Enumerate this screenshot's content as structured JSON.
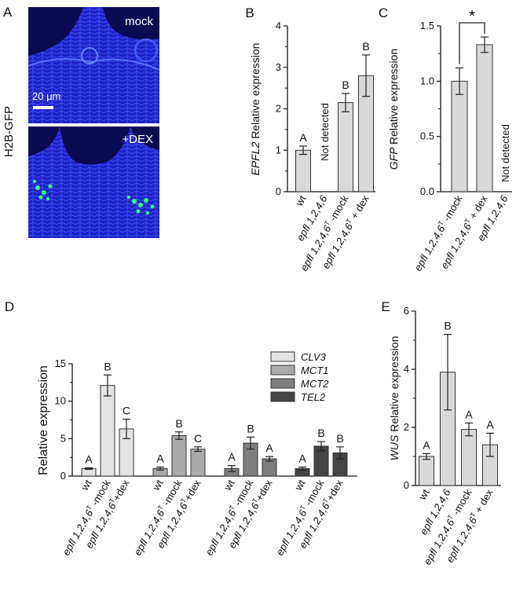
{
  "panels": {
    "a": {
      "letter": "A",
      "side_label": "H2B-GFP",
      "top_label": "mock",
      "bottom_label": "+DEX",
      "scale_bar": "20 μm"
    }
  },
  "colors": {
    "micro_bg": "#1414b4",
    "gfp": "#33ff77",
    "bar_light": "#d9d9d9",
    "clv3": "#e3e3e3",
    "mct1": "#aaaaaa",
    "mct2": "#7f7f7f",
    "tel2": "#454545"
  },
  "chart_data": [
    {
      "panel": "B",
      "type": "bar",
      "ylabel_italic": "EPFL2",
      "ylabel": "Relative expression",
      "ylim": [
        0,
        4
      ],
      "yticks": [
        "0",
        "1",
        "2",
        "3",
        "4"
      ],
      "categories": [
        {
          "main": "wt",
          "sup": "",
          "suffix": ""
        },
        {
          "main": "epfl 1,2,4,6",
          "sup": "",
          "suffix": ""
        },
        {
          "main": "epfl 1,2,4,6",
          "sup": "T",
          "suffix": " -mock"
        },
        {
          "main": "epfl 1,2,4,6",
          "sup": "T",
          "suffix": " + dex"
        }
      ],
      "values": [
        1.0,
        null,
        2.15,
        2.8
      ],
      "errors": [
        0.1,
        null,
        0.22,
        0.5
      ],
      "letters": [
        "A",
        "",
        "B",
        "B"
      ],
      "annotation": "Not detected"
    },
    {
      "panel": "C",
      "type": "bar",
      "ylabel_italic": "GFP",
      "ylabel": "Relative expression",
      "ylim": [
        0,
        1.5
      ],
      "yticks": [
        "0.0",
        "0.5",
        "1.0",
        "1.5"
      ],
      "categories": [
        {
          "main": "epfl 1,2,4,6",
          "sup": "T",
          "suffix": " -mock"
        },
        {
          "main": "epfl 1,2,4,6",
          "sup": "T",
          "suffix": " + dex"
        },
        {
          "main": "epfl 1,2,4,6",
          "sup": "",
          "suffix": ""
        }
      ],
      "values": [
        1.0,
        1.33,
        null
      ],
      "errors": [
        0.12,
        0.07,
        null
      ],
      "significance": "*",
      "annotation": "Not detected"
    },
    {
      "panel": "D",
      "type": "bar",
      "ylabel": "Relative expression",
      "ylim": [
        0,
        15
      ],
      "yticks": [
        "0",
        "5",
        "10",
        "15"
      ],
      "categories": [
        {
          "main": "wt",
          "sup": "",
          "suffix": ""
        },
        {
          "main": "epfl 1,2,4,6",
          "sup": "T",
          "suffix": " -mock"
        },
        {
          "main": "epfl 1,2,4,6",
          "sup": "T",
          "suffix": "+dex"
        }
      ],
      "series": [
        {
          "name": "CLV3",
          "values": [
            1.0,
            12.1,
            6.3
          ],
          "errors": [
            0.1,
            1.4,
            1.3
          ],
          "letters": [
            "A",
            "B",
            "C"
          ]
        },
        {
          "name": "MCT1",
          "values": [
            1.0,
            5.4,
            3.6
          ],
          "errors": [
            0.2,
            0.5,
            0.3
          ],
          "letters": [
            "A",
            "B",
            "C"
          ]
        },
        {
          "name": "MCT2",
          "values": [
            1.0,
            4.4,
            2.3
          ],
          "errors": [
            0.4,
            0.8,
            0.3
          ],
          "letters": [
            "A",
            "B",
            "A"
          ]
        },
        {
          "name": "TEL2",
          "values": [
            1.0,
            4.0,
            3.1
          ],
          "errors": [
            0.2,
            0.6,
            0.8
          ],
          "letters": [
            "A",
            "B",
            "B"
          ]
        }
      ]
    },
    {
      "panel": "E",
      "type": "bar",
      "ylabel_italic": "WUS",
      "ylabel": "Relative expression",
      "ylim": [
        0,
        6
      ],
      "yticks": [
        "0",
        "2",
        "4",
        "6"
      ],
      "categories": [
        {
          "main": "wt",
          "sup": "",
          "suffix": ""
        },
        {
          "main": "epfl 1,2,4,6",
          "sup": "",
          "suffix": ""
        },
        {
          "main": "epfl 1,2,4,6",
          "sup": "T",
          "suffix": " -mock"
        },
        {
          "main": "epfl 1,2,4,6",
          "sup": "T",
          "suffix": " + dex"
        }
      ],
      "values": [
        1.0,
        3.9,
        1.93,
        1.4
      ],
      "errors": [
        0.1,
        1.3,
        0.22,
        0.4
      ],
      "letters": [
        "A",
        "B",
        "A",
        "A"
      ]
    }
  ]
}
